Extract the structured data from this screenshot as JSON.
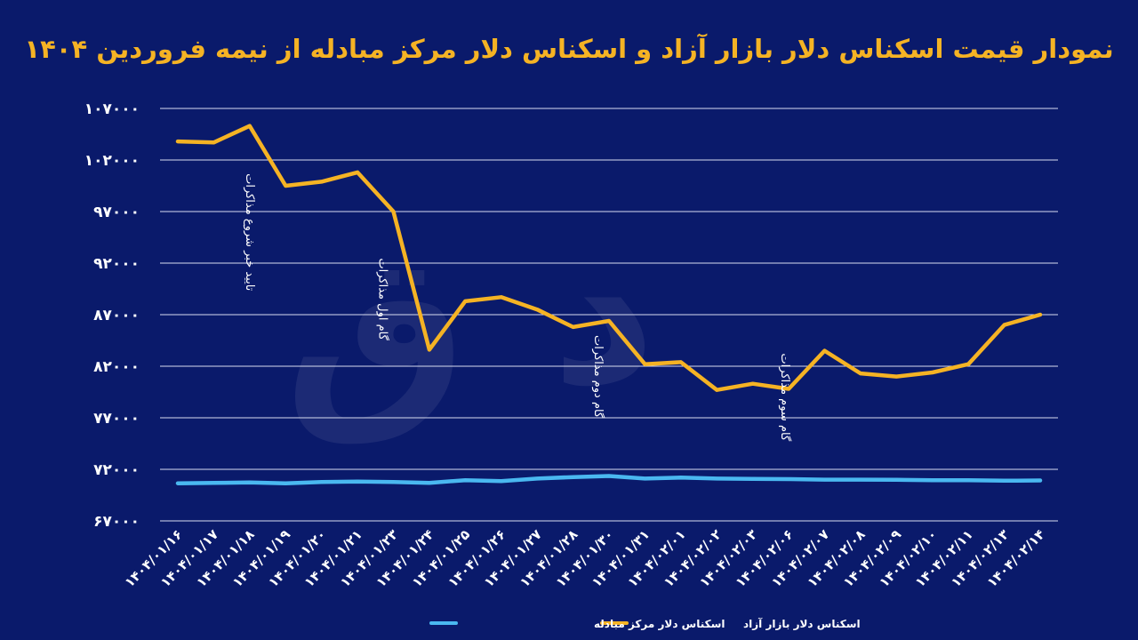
{
  "chart_data": {
    "type": "line",
    "title": "نمودار قیمت اسکناس دلار بازار آزاد و اسکناس دلار مرکز مبادله از نیمه فروردین ۱۴۰۴",
    "x": [
      "۱۴۰۴/۰۱/۱۶",
      "۱۴۰۴/۰۱/۱۷",
      "۱۴۰۴/۰۱/۱۸",
      "۱۴۰۴/۰۱/۱۹",
      "۱۴۰۴/۰۱/۲۰",
      "۱۴۰۴/۰۱/۲۱",
      "۱۴۰۴/۰۱/۲۳",
      "۱۴۰۴/۰۱/۲۴",
      "۱۴۰۴/۰۱/۲۵",
      "۱۴۰۴/۰۱/۲۶",
      "۱۴۰۴/۰۱/۲۷",
      "۱۴۰۴/۰۱/۲۸",
      "۱۴۰۴/۰۱/۳۰",
      "۱۴۰۴/۰۱/۳۱",
      "۱۴۰۴/۰۲/۰۱",
      "۱۴۰۴/۰۲/۰۲",
      "۱۴۰۴/۰۲/۰۳",
      "۱۴۰۴/۰۲/۰۶",
      "۱۴۰۴/۰۲/۰۷",
      "۱۴۰۴/۰۲/۰۸",
      "۱۴۰۴/۰۲/۰۹",
      "۱۴۰۴/۰۲/۱۰",
      "۱۴۰۴/۰۲/۱۱",
      "۱۴۰۴/۰۲/۱۳",
      "۱۴۰۴/۰۲/۱۴"
    ],
    "yticks": [
      {
        "value": 67000,
        "label": "۶۷۰۰۰"
      },
      {
        "value": 72000,
        "label": "۷۲۰۰۰"
      },
      {
        "value": 77000,
        "label": "۷۷۰۰۰"
      },
      {
        "value": 82000,
        "label": "۸۲۰۰۰"
      },
      {
        "value": 87000,
        "label": "۸۷۰۰۰"
      },
      {
        "value": 92000,
        "label": "۹۲۰۰۰"
      },
      {
        "value": 97000,
        "label": "۹۷۰۰۰"
      },
      {
        "value": 102000,
        "label": "۱۰۲۰۰۰"
      },
      {
        "value": 107000,
        "label": "۱۰۷۰۰۰"
      }
    ],
    "ylim": [
      67000,
      107000
    ],
    "grid": true,
    "legend_position": "bottom",
    "series": [
      {
        "name": "اسکناس دلار بازار آزاد",
        "color": "#f5b324",
        "values": [
          103800,
          103700,
          105300,
          99500,
          99900,
          100800,
          97000,
          83600,
          88300,
          88700,
          87500,
          85800,
          86400,
          82200,
          82400,
          79700,
          80300,
          79800,
          83500,
          81300,
          81000,
          81400,
          82200,
          86000,
          87000
        ]
      },
      {
        "name": "اسکناس دلار مرکز مبادله",
        "color": "#4ab8f0",
        "values": [
          70650,
          70680,
          70720,
          70650,
          70780,
          70820,
          70780,
          70680,
          70950,
          70850,
          71100,
          71250,
          71350,
          71100,
          71200,
          71100,
          71080,
          71050,
          71000,
          71000,
          70980,
          70950,
          70950,
          70900,
          70920
        ]
      }
    ],
    "annotations": [
      {
        "text": "تایید خبر شروع مذاکرات",
        "x_index": 1.9,
        "y": 95000
      },
      {
        "text": "گام اول مذاکرات",
        "x_index": 5.6,
        "y": 88500
      },
      {
        "text": "گام دوم مذاکرات",
        "x_index": 11.6,
        "y": 81000
      },
      {
        "text": "گام سوم مذاکرات",
        "x_index": 16.8,
        "y": 79000
      }
    ]
  }
}
